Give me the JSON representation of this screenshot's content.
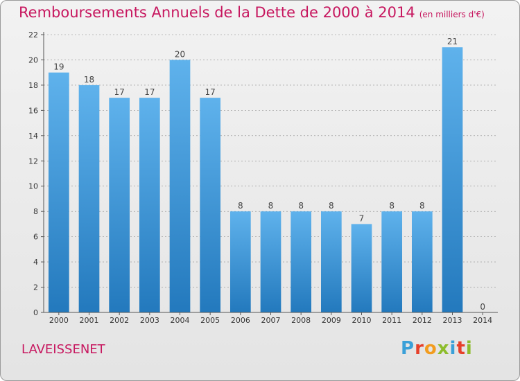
{
  "header": {
    "title": "Remboursements Annuels de la Dette de 2000 à 2014",
    "subtitle": "(en milliers d'€)"
  },
  "footer": {
    "commune": "LAVEISSENET",
    "logo_text": "Proxiti",
    "logo_colors": [
      "#3aa0d8",
      "#e6402a",
      "#f29c1f",
      "#8dbd2c",
      "#3aa0d8",
      "#e6402a",
      "#8dbd2c"
    ]
  },
  "colors": {
    "title": "#c7175f",
    "bar_top": "#5fb2ec",
    "bar_bottom": "#2379bd",
    "axis": "#555555",
    "grid": "#888888"
  },
  "chart_data": {
    "type": "bar",
    "categories": [
      "2000",
      "2001",
      "2002",
      "2003",
      "2004",
      "2005",
      "2006",
      "2007",
      "2008",
      "2009",
      "2010",
      "2011",
      "2012",
      "2013",
      "2014"
    ],
    "values": [
      19,
      18,
      17,
      17,
      20,
      17,
      8,
      8,
      8,
      8,
      7,
      8,
      8,
      21,
      0
    ],
    "title": "Remboursements Annuels de la Dette de 2000 à 2014",
    "ylim": [
      0,
      22
    ],
    "yticks": [
      0,
      2,
      4,
      6,
      8,
      10,
      12,
      14,
      16,
      18,
      20,
      22
    ],
    "grid": true
  }
}
